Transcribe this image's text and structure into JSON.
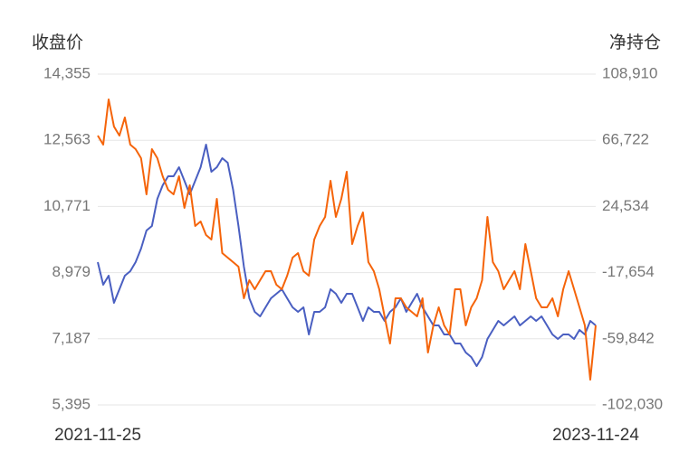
{
  "chart_data": {
    "type": "line",
    "y_label": "收盘价",
    "y2_label": "净持仓",
    "categories": [
      "2021-11-25",
      null,
      null,
      null,
      null,
      null,
      null,
      null,
      null,
      null,
      null,
      null,
      null,
      null,
      null,
      null,
      null,
      null,
      null,
      null,
      null,
      null,
      null,
      null,
      null,
      null,
      null,
      null,
      null,
      null,
      null,
      null,
      null,
      null,
      null,
      null,
      null,
      null,
      null,
      null,
      null,
      null,
      null,
      null,
      null,
      null,
      null,
      null,
      null,
      null,
      null,
      null,
      null,
      null,
      null,
      null,
      null,
      null,
      null,
      null,
      null,
      null,
      null,
      null,
      null,
      null,
      null,
      null,
      null,
      null,
      null,
      null,
      null,
      null,
      null,
      null,
      null,
      null,
      null,
      null,
      null,
      null,
      null,
      null,
      null,
      null,
      null,
      null,
      null,
      null,
      null,
      null,
      "2023-11-24"
    ],
    "series": [
      {
        "color": "#4a5fc1",
        "values": [
          9263,
          8651,
          8896,
          8162,
          8529,
          8896,
          9018,
          9263,
          9630,
          10120,
          10242,
          10977,
          11344,
          11589,
          11589,
          11834,
          11466,
          11099,
          11466,
          11834,
          12446,
          11711,
          11834,
          12078,
          11956,
          11222,
          10242,
          9141,
          8284,
          7917,
          7794,
          8039,
          8284,
          8406,
          8529,
          8284,
          8039,
          7917,
          8039,
          7305,
          7917,
          7917,
          8039,
          8529,
          8406,
          8162,
          8406,
          8406,
          8039,
          7672,
          8039,
          7917,
          7917,
          7672,
          7917,
          8039,
          8284,
          7917,
          8162,
          8406,
          8039,
          7794,
          7550,
          7550,
          7305,
          7305,
          7060,
          7060,
          6815,
          6693,
          6448,
          6693,
          7182,
          7427,
          7672,
          7550,
          7672,
          7794,
          7550,
          7672,
          7794,
          7672,
          7794,
          7550,
          7305,
          7182,
          7305,
          7305,
          7182,
          7427,
          7305,
          7672,
          7550
        ]
      },
      {
        "color": "#f5640a",
        "axis": "y2",
        "values": [
          69722,
          63959,
          92774,
          75485,
          69722,
          81248,
          63959,
          61077,
          55314,
          32262,
          61077,
          55314,
          43788,
          35144,
          32262,
          43788,
          23618,
          38025,
          12092,
          14973,
          6329,
          3447,
          29381,
          -5197,
          -8079,
          -10960,
          -13842,
          -34012,
          -22486,
          -28249,
          -22486,
          -16723,
          -16723,
          -25368,
          -28249,
          -19605,
          -8079,
          -5197,
          -16723,
          -19605,
          3447,
          12092,
          17855,
          40907,
          17855,
          29381,
          46670,
          566,
          12092,
          20736,
          -10960,
          -16723,
          -28249,
          -45538,
          -62827,
          -34012,
          -34012,
          -39775,
          -42657,
          -45538,
          -34012,
          -68590,
          -51301,
          -39775,
          -51301,
          -57064,
          -28249,
          -28249,
          -51301,
          -39775,
          -34012,
          -22486,
          17855,
          -10960,
          -16723,
          -28249,
          -22486,
          -16723,
          -28249,
          566,
          -16723,
          -34012,
          -39775,
          -39775,
          -34012,
          -45538,
          -28249,
          -16723,
          -28249,
          -39775,
          -51301,
          -85879,
          -51301
        ]
      }
    ],
    "ylim": [
      5395,
      14355
    ],
    "yticks": [
      {
        "value": 5395,
        "label": "5,395"
      },
      {
        "value": 7187,
        "label": "7,187"
      },
      {
        "value": 8979,
        "label": "8,979"
      },
      {
        "value": 10771,
        "label": "10,771"
      },
      {
        "value": 12563,
        "label": "12,563"
      },
      {
        "value": 14355,
        "label": "14,355"
      }
    ],
    "y2lim": [
      -102030,
      108910
    ],
    "y2ticks": [
      {
        "value": -102030,
        "label": "-102,030"
      },
      {
        "value": -59842,
        "label": "-59,842"
      },
      {
        "value": -17654,
        "label": "-17,654"
      },
      {
        "value": 24534,
        "label": "24,534"
      },
      {
        "value": 66722,
        "label": "66,722"
      },
      {
        "value": 108910,
        "label": "108,910"
      }
    ],
    "grid": true
  }
}
